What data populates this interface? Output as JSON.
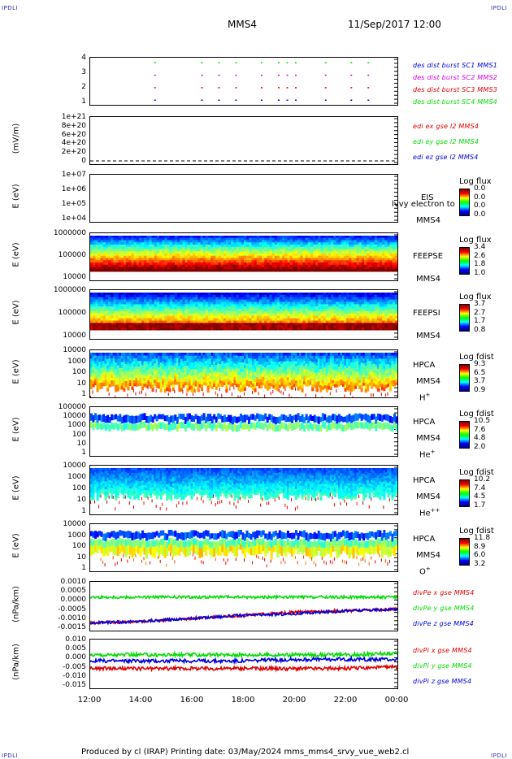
{
  "corners": {
    "tl": "IPDLI",
    "tr": "IPDLI",
    "bl": "IPDLI",
    "br": "IPDLI"
  },
  "header": {
    "spacecraft": "MMS4",
    "datetime": "11/Sep/2017 12:00"
  },
  "footer": {
    "text": "Produced by cl (IRAP)   Printing date: 03/May/2024   mms_mms4_srvy_vue_web2.cl"
  },
  "colors": {
    "red": "#e00000",
    "green": "#00dd00",
    "blue": "#0000dd",
    "magenta": "#dd00dd"
  },
  "chart_data": [
    {
      "type": "scatter",
      "id": "burst",
      "ylabel": "",
      "yticks": [
        "4",
        "3",
        "2",
        "1"
      ],
      "legend": [
        {
          "name": "des dist burst SC1 MMS1",
          "color": "#0000dd"
        },
        {
          "name": "des dist burst SC2 MMS2",
          "color": "#dd00dd"
        },
        {
          "name": "des dist burst SC3 MMS3",
          "color": "#e00000"
        },
        {
          "name": "des dist burst SC4 MMS4",
          "color": "#00dd00"
        }
      ],
      "burst_times": [
        "14:30",
        "16:20",
        "17:00",
        "17:40",
        "18:40",
        "19:20",
        "19:40",
        "20:00",
        "21:10",
        "22:10",
        "22:50"
      ]
    },
    {
      "type": "line",
      "id": "edi",
      "ylabel": "(mV/m)",
      "yticks": [
        "1e+21",
        "8e+20",
        "6e+20",
        "4e+20",
        "2e+20",
        "0"
      ],
      "legend": [
        {
          "name": "edi ex gse l2 MMS4",
          "color": "#e00000"
        },
        {
          "name": "edi ey gse l2 MMS4",
          "color": "#00dd00"
        },
        {
          "name": "edi ez gse l2 MMS4",
          "color": "#0000dd"
        }
      ]
    },
    {
      "type": "heatmap",
      "id": "eis",
      "ylabel": "E (eV)",
      "yticks": [
        "1e+07",
        "1e+06",
        "1e+05",
        "1e+04"
      ],
      "instrument": "EIS",
      "overlay": "lvvy electron to",
      "sc": "MMS4",
      "cbar": {
        "title": "Log flux",
        "ticks": [
          "0.0",
          "0.0",
          "0.0",
          "0.0"
        ]
      }
    },
    {
      "type": "heatmap",
      "id": "feepse",
      "ylabel": "E (eV)",
      "yticks": [
        "1000000",
        "100000",
        "10000"
      ],
      "instrument": "FEEPSE",
      "sc": "MMS4",
      "cbar": {
        "title": "Log flux",
        "ticks": [
          "3.4",
          "2.6",
          "1.8",
          "1.0"
        ]
      }
    },
    {
      "type": "heatmap",
      "id": "feepsi",
      "ylabel": "E (eV)",
      "yticks": [
        "1000000",
        "100000",
        "10000"
      ],
      "instrument": "FEEPSI",
      "sc": "MMS4",
      "cbar": {
        "title": "Log flux",
        "ticks": [
          "3.7",
          "2.7",
          "1.7",
          "0.8"
        ]
      }
    },
    {
      "type": "heatmap",
      "id": "hpca_h",
      "ylabel": "E (eV)",
      "yticks": [
        "10000",
        "1000",
        "100",
        "10",
        "1"
      ],
      "instrument": "HPCA",
      "sc": "MMS4",
      "species": "H",
      "charge": "+",
      "cbar": {
        "title": "Log fdist",
        "ticks": [
          "9.3",
          "6.5",
          "3.7",
          "0.9"
        ]
      }
    },
    {
      "type": "heatmap",
      "id": "hpca_he",
      "ylabel": "E (eV)",
      "yticks": [
        "100000",
        "10000",
        "1000",
        "100",
        "10",
        "1"
      ],
      "instrument": "HPCA",
      "sc": "MMS4",
      "species": "He",
      "charge": "+",
      "cbar": {
        "title": "Log fdist",
        "ticks": [
          "10.5",
          "7.6",
          "4.8",
          "2.0"
        ]
      }
    },
    {
      "type": "heatmap",
      "id": "hpca_he2",
      "ylabel": "E (eV)",
      "yticks": [
        "10000",
        "1000",
        "100",
        "10",
        "1"
      ],
      "instrument": "HPCA",
      "sc": "MMS4",
      "species": "He",
      "charge": "++",
      "cbar": {
        "title": "Log fdist",
        "ticks": [
          "10.2",
          "7.4",
          "4.5",
          "1.7"
        ]
      }
    },
    {
      "type": "heatmap",
      "id": "hpca_o",
      "ylabel": "E (eV)",
      "yticks": [
        "10000",
        "1000",
        "100",
        "10",
        "1"
      ],
      "instrument": "HPCA",
      "sc": "MMS4",
      "species": "O",
      "charge": "+",
      "cbar": {
        "title": "Log fdist",
        "ticks": [
          "11.8",
          "8.9",
          "6.0",
          "3.2"
        ]
      }
    },
    {
      "type": "line",
      "id": "divpe",
      "ylabel": "(nPa/km)",
      "yticks": [
        "0.0010",
        "0.0005",
        "0.0000",
        "-0.0005",
        "-0.0010",
        "-0.0015"
      ],
      "ylim": [
        -0.0018,
        0.0012
      ],
      "legend": [
        {
          "name": "divPe x gse MMS4",
          "color": "#e00000"
        },
        {
          "name": "divPe y gse MMS4",
          "color": "#00dd00"
        },
        {
          "name": "divPe z gse MMS4",
          "color": "#0000dd"
        }
      ],
      "x": [
        "12:00",
        "14:00",
        "16:00",
        "18:00",
        "20:00",
        "22:00",
        "00:00"
      ],
      "series": [
        {
          "name": "divPe x gse MMS4",
          "values": [
            -0.0014,
            -0.0013,
            -0.0011,
            -0.0009,
            -0.0007,
            -0.0006,
            -0.0005
          ]
        },
        {
          "name": "divPe y gse MMS4",
          "values": [
            0.0003,
            0.0003,
            0.0003,
            0.0003,
            0.0003,
            0.0003,
            0.0003
          ]
        },
        {
          "name": "divPe z gse MMS4",
          "values": [
            -0.0014,
            -0.0013,
            -0.0011,
            -0.0009,
            -0.0008,
            -0.0006,
            -0.0005
          ]
        }
      ]
    },
    {
      "type": "line",
      "id": "divpi",
      "ylabel": "(nPa/km)",
      "yticks": [
        "0.010",
        "0.005",
        "0.000",
        "-0.005",
        "-0.010",
        "-0.015"
      ],
      "ylim": [
        -0.018,
        0.012
      ],
      "legend": [
        {
          "name": "divPi x gse MMS4",
          "color": "#e00000"
        },
        {
          "name": "divPi y gse MMS4",
          "color": "#00dd00"
        },
        {
          "name": "divPi z gse MMS4",
          "color": "#0000dd"
        }
      ],
      "x": [
        "12:00",
        "14:00",
        "16:00",
        "18:00",
        "20:00",
        "22:00",
        "00:00"
      ],
      "series": [
        {
          "name": "divPi x gse MMS4",
          "values": [
            -0.006,
            -0.006,
            -0.006,
            -0.006,
            -0.006,
            -0.006,
            -0.005
          ]
        },
        {
          "name": "divPi y gse MMS4",
          "values": [
            0.003,
            0.003,
            0.003,
            0.003,
            0.003,
            0.003,
            0.004
          ]
        },
        {
          "name": "divPi z gse MMS4",
          "values": [
            -0.001,
            -0.001,
            -0.001,
            -0.001,
            0.0,
            0.0,
            0.0
          ]
        }
      ]
    }
  ],
  "xaxis": {
    "ticks": [
      "12:00",
      "14:00",
      "16:00",
      "18:00",
      "20:00",
      "22:00",
      "00:00"
    ]
  }
}
